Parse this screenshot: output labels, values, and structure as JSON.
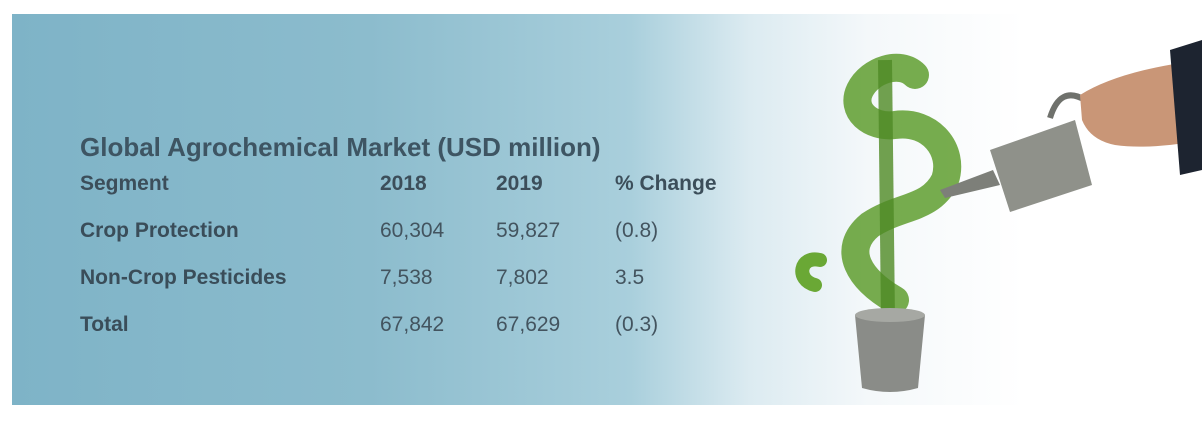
{
  "title": "Global Agrochemical Market (USD million)",
  "table": {
    "header": [
      "Segment",
      "2018",
      "2019",
      "% Change"
    ],
    "rows": [
      [
        "Crop Protection",
        "60,304",
        "59,827",
        "(0.8)"
      ],
      [
        "Non-Crop Pesticides",
        "7,538",
        "7,802",
        "3.5"
      ],
      [
        "Total",
        "67,842",
        "67,629",
        "(0.3)"
      ]
    ]
  }
}
